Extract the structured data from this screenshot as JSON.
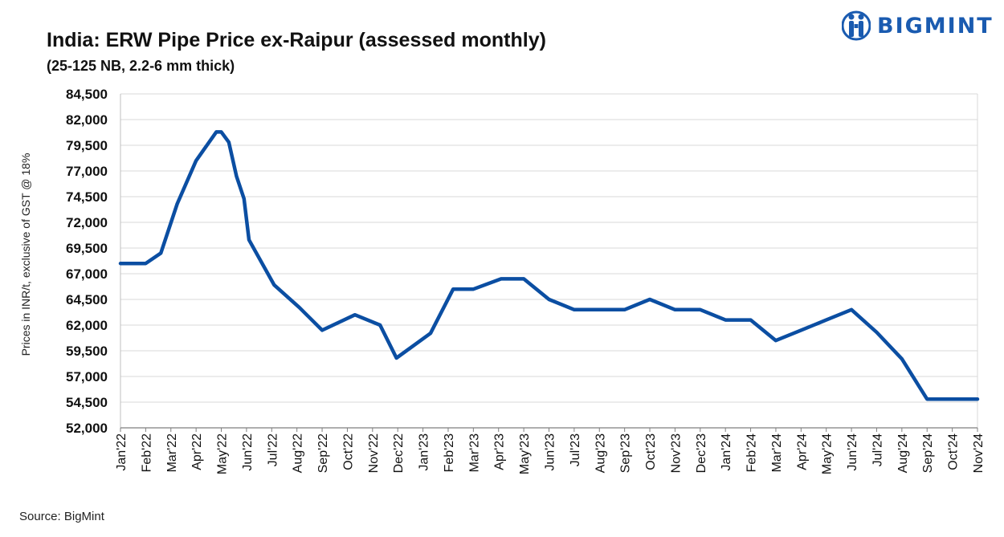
{
  "header": {
    "title": "India: ERW Pipe Price ex-Raipur (assessed monthly)",
    "subtitle": "(25-125 NB, 2.2-6 mm thick)"
  },
  "brand": {
    "name": "BIGMINT",
    "icon": "bigmint-logo-icon",
    "color": "#1a5bb0"
  },
  "footer": {
    "source": "Source: BigMint"
  },
  "chart_data": {
    "type": "line",
    "title": "India: ERW Pipe Price ex-Raipur (assessed monthly)",
    "subtitle": "(25-125 NB, 2.2-6 mm thick)",
    "xlabel": "",
    "ylabel": "Prices in INR/t, exclusive of GST @ 18%",
    "ylim": [
      52000,
      84500
    ],
    "yticks": [
      52000,
      54500,
      57000,
      59500,
      62000,
      64500,
      67000,
      69500,
      72000,
      74500,
      77000,
      79500,
      82000,
      84500
    ],
    "ytick_labels": [
      "52,000",
      "54,500",
      "57,000",
      "59,500",
      "62,000",
      "64,500",
      "67,000",
      "69,500",
      "72,000",
      "74,500",
      "77,000",
      "79,500",
      "82,000",
      "84,500"
    ],
    "xlim": [
      0,
      34
    ],
    "xticks": [
      "Jan'22",
      "Feb'22",
      "Mar'22",
      "Apr'22",
      "May'22",
      "Jun'22",
      "Jul'22",
      "Aug'22",
      "Sep'22",
      "Oct'22",
      "Nov'22",
      "Dec'22",
      "Jan'23",
      "Feb'23",
      "Mar'23",
      "Apr'23",
      "May'23",
      "Jun'23",
      "Jul'23",
      "Aug'23",
      "Sep'23",
      "Oct'23",
      "Nov'23",
      "Dec'23",
      "Jan'24",
      "Feb'24",
      "Mar'24",
      "Apr'24",
      "May'24",
      "Jun'24",
      "Jul'24",
      "Aug'24",
      "Sep'24",
      "Oct'24",
      "Nov'24"
    ],
    "grid": true,
    "series": [
      {
        "name": "ERW Pipe Price ex-Raipur",
        "color": "#0b4ea2",
        "x": [
          0,
          1,
          1.6,
          2.25,
          3,
          3.8,
          4.0,
          4.3,
          4.6,
          4.9,
          5.1,
          6.1,
          7.1,
          8.0,
          9.3,
          10.3,
          10.95,
          12.3,
          13.2,
          14.0,
          15.1,
          16.0,
          17.0,
          18.0,
          19.0,
          20.0,
          21.0,
          22.0,
          23.0,
          24.0,
          25.0,
          26.0,
          27.0,
          28.0,
          29.0,
          30.0,
          31.0,
          32.0,
          33.0,
          34.0
        ],
        "y": [
          68000,
          68000,
          69000,
          73800,
          78000,
          80800,
          80800,
          79800,
          76500,
          74300,
          70300,
          65900,
          63700,
          61500,
          63000,
          62000,
          58800,
          61200,
          65500,
          65500,
          66500,
          66500,
          64500,
          63500,
          63500,
          63500,
          64500,
          63500,
          63500,
          62500,
          62500,
          60500,
          61500,
          62500,
          63500,
          61300,
          58700,
          54800,
          54800,
          54800
        ]
      }
    ]
  }
}
